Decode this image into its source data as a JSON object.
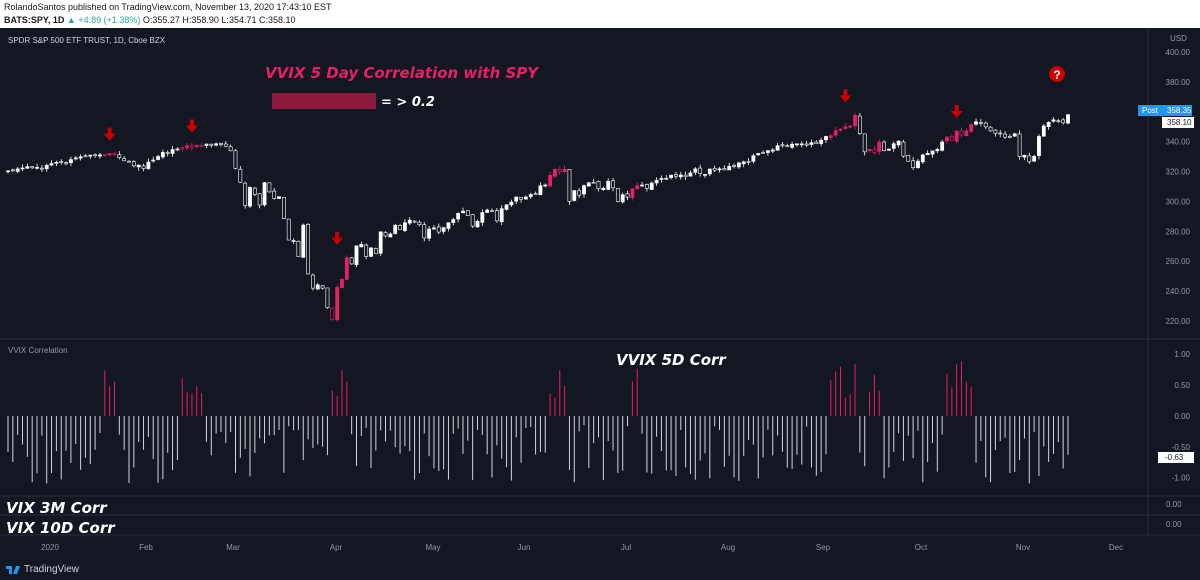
{
  "header": {
    "published_line": "RolandoSantos published on TradingView.com, November 13, 2020 17:43:10 EST",
    "symbol": "BATS:SPY, 1D",
    "change": "+4.89 (+1.38%)",
    "ohlc": "O:355.27 H:358.90 L:354.71 C:358.10"
  },
  "main_pane": {
    "instrument": "SPDR S&P 500 ETF TRUST, 1D, Cboe BZX",
    "currency": "USD",
    "post_label": "Post",
    "post_price": "358.35",
    "last_price": "358.10"
  },
  "annotations": {
    "title": "VVIX 5 Day Correlation with SPY",
    "legend_text": "= > 0.2",
    "lower_title": "VVIX 5D Corr",
    "vix3m": "VIX 3M Corr",
    "vix10d": "VIX 10D Corr",
    "question_mark": "?"
  },
  "colors": {
    "background": "#131722",
    "up_candle": "#ffffff",
    "highlight": "#e91e63",
    "arrow": "#cc0000",
    "title_pink": "#e91e63",
    "legend_box": "#8b1a3d",
    "price_label_bg": "#2196f3"
  },
  "footer": {
    "brand": "TradingView"
  },
  "chart_data": [
    {
      "type": "candlestick",
      "title": "SPDR S&P 500 ETF TRUST, 1D, Cboe BZX",
      "y_ticks": [
        "400.00",
        "380.00",
        "360.00",
        "340.00",
        "320.00",
        "300.00",
        "280.00",
        "260.00",
        "240.00",
        "220.00"
      ],
      "ylim": [
        214,
        404
      ],
      "x_ticks": [
        "2020",
        "Feb",
        "Mar",
        "Apr",
        "May",
        "Jun",
        "Jul",
        "Aug",
        "Sep",
        "Oct",
        "Nov",
        "Dec"
      ],
      "closes": [
        320.5,
        320.7,
        321.8,
        322.4,
        323.3,
        322.5,
        322.8,
        322.1,
        324.2,
        325.4,
        326.2,
        326.5,
        325.2,
        328.0,
        329.1,
        329.9,
        330.5,
        331.0,
        330.6,
        331.2,
        330.9,
        332.0,
        331.4,
        329.3,
        327.2,
        326.6,
        323.8,
        324.3,
        322.0,
        326.3,
        327.7,
        330.1,
        332.8,
        332.5,
        334.7,
        335.1,
        335.2,
        337.3,
        336.3,
        337.4,
        336.7,
        338.4,
        338.0,
        338.6,
        338.0,
        336.9,
        333.9,
        322.1,
        312.8,
        297.2,
        309.5,
        304.7,
        297.6,
        312.6,
        306.4,
        302.0,
        303.2,
        288.5,
        274.2,
        273.8,
        263.2,
        284.2,
        251.5,
        242.0,
        244.2,
        242.0,
        229.0,
        221.0,
        242.5,
        248.0,
        262.3,
        258.2,
        270.3,
        271.3,
        263.1,
        269.0,
        265.0,
        279.7,
        276.9,
        278.2,
        284.1,
        281.1,
        285.8,
        287.5,
        286.3,
        284.5,
        275.6,
        281.6,
        282.3,
        279.5,
        282.5,
        285.8,
        287.9,
        292.0,
        293.5,
        290.5,
        283.5,
        286.7,
        292.6,
        294.3,
        293.2,
        287.0,
        295.2,
        297.7,
        299.6,
        303.0,
        301.5,
        302.9,
        304.7,
        304.9,
        310.5,
        311.0,
        317.5,
        321.5,
        320.0,
        321.5,
        300.0,
        307.3,
        304.2,
        310.6,
        312.5,
        312.7,
        308.5,
        308.8,
        313.5,
        309.1,
        300.1,
        304.5,
        302.9,
        308.5,
        310.5,
        311.0,
        308.7,
        312.3,
        314.2,
        315.4,
        315.5,
        317.6,
        316.9,
        317.7,
        316.5,
        319.1,
        321.8,
        318.7,
        318.1,
        321.7,
        320.9,
        321.8,
        321.1,
        323.5,
        323.8,
        325.8,
        326.5,
        326.8,
        330.6,
        332.1,
        332.7,
        334.0,
        334.5,
        337.3,
        337.3,
        336.8,
        338.3,
        338.6,
        338.5,
        337.7,
        339.4,
        338.7,
        341.0,
        343.5,
        344.0,
        347.4,
        348.3,
        349.9,
        350.4,
        357.6,
        345.4,
        333.2,
        334.9,
        332.7,
        339.8,
        333.9,
        335.0,
        338.6,
        340.4,
        330.3,
        326.9,
        322.6,
        327.0,
        331.1,
        332.2,
        333.8,
        334.8,
        339.8,
        343.1,
        340.6,
        346.9,
        344.5,
        347.1,
        351.5,
        353.3,
        352.4,
        349.9,
        347.2,
        345.6,
        345.4,
        343.0,
        343.0,
        345.3,
        330.0,
        330.9,
        326.5,
        330.2,
        343.5,
        350.5,
        352.9,
        354.6,
        354.0,
        352.6,
        358.1
      ]
    },
    {
      "type": "bar",
      "title": "VVIX Correlation",
      "y_ticks": [
        "1.00",
        "0.50",
        "0.00",
        "-0.50",
        "-1.00"
      ],
      "ylim": [
        -1.2,
        1.1
      ],
      "last_value": "-0.63"
    },
    {
      "type": "line",
      "title": "VIX 3M Corr",
      "y_ticks": [
        "0.00"
      ]
    },
    {
      "type": "line",
      "title": "VIX 10D Corr",
      "y_ticks": [
        "0.00"
      ]
    }
  ]
}
